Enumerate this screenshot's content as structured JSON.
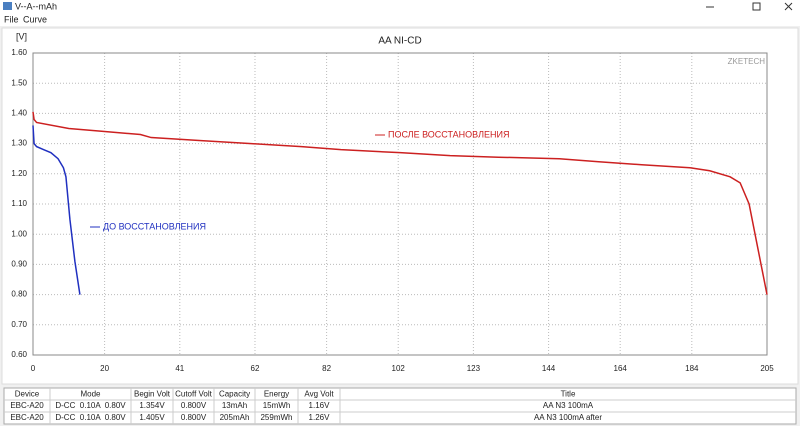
{
  "window": {
    "title": "V--A--mAh"
  },
  "menu": [
    "File",
    "Curve"
  ],
  "chart_data": {
    "type": "line",
    "title": "AA NI-CD",
    "y_label": "[V]",
    "watermark": "ZKETECH",
    "xlim": [
      0,
      205
    ],
    "xticks": [
      0,
      20,
      41,
      62,
      82,
      102,
      123,
      144,
      164,
      184,
      205
    ],
    "ylim": [
      0.6,
      1.6
    ],
    "yticks": [
      {
        "value": 0.6,
        "label": "0.60"
      },
      {
        "value": 0.7,
        "label": "0.70"
      },
      {
        "value": 0.8,
        "label": "0.80"
      },
      {
        "value": 0.9,
        "label": "0.90"
      },
      {
        "value": 1.0,
        "label": "1.00"
      },
      {
        "value": 1.1,
        "label": "1.10"
      },
      {
        "value": 1.2,
        "label": "1.20"
      },
      {
        "value": 1.3,
        "label": "1.30"
      },
      {
        "value": 1.4,
        "label": "1.40"
      },
      {
        "value": 1.5,
        "label": "1.50"
      },
      {
        "value": 1.6,
        "label": "1.60"
      }
    ],
    "grid": true,
    "series": [
      {
        "name": "ПОСЛЕ ВОССТАНОВЛЕНИЯ",
        "color": "#cc2020",
        "x": [
          0,
          0.3,
          1,
          10,
          20,
          30,
          33,
          47,
          61,
          75,
          86,
          102.5,
          116.5,
          130,
          147,
          158,
          170,
          183.5,
          189,
          194.7,
          197.5,
          200,
          202.5,
          205
        ],
        "values": [
          1.405,
          1.38,
          1.37,
          1.35,
          1.34,
          1.33,
          1.32,
          1.31,
          1.3,
          1.29,
          1.28,
          1.27,
          1.26,
          1.255,
          1.25,
          1.24,
          1.23,
          1.22,
          1.21,
          1.19,
          1.17,
          1.1,
          0.95,
          0.8
        ]
      },
      {
        "name": "ДО ВОССТАНОВЛЕНИЯ",
        "color": "#2030c0",
        "x": [
          0,
          0.3,
          1,
          3,
          5,
          6,
          7,
          7.5,
          8.5,
          9.2,
          10.3,
          11.7,
          13.1
        ],
        "values": [
          1.36,
          1.3,
          1.29,
          1.28,
          1.27,
          1.26,
          1.25,
          1.24,
          1.22,
          1.19,
          1.05,
          0.91,
          0.8
        ]
      }
    ]
  },
  "table": {
    "columns": [
      "Device",
      "Mode",
      "Begin Volt",
      "Cutoff Volt",
      "Capacity",
      "Energy",
      "Avg Volt",
      "Title"
    ],
    "rows": [
      [
        "EBC-A20",
        "D-CC  0.10A  0.80V",
        "1.354V",
        "0.800V",
        "13mAh",
        "15mWh",
        "1.16V",
        "AA N3 100mA"
      ],
      [
        "EBC-A20",
        "D-CC  0.10A  0.80V",
        "1.405V",
        "0.800V",
        "205mAh",
        "259mWh",
        "1.26V",
        "AA N3 100mA after"
      ]
    ]
  }
}
